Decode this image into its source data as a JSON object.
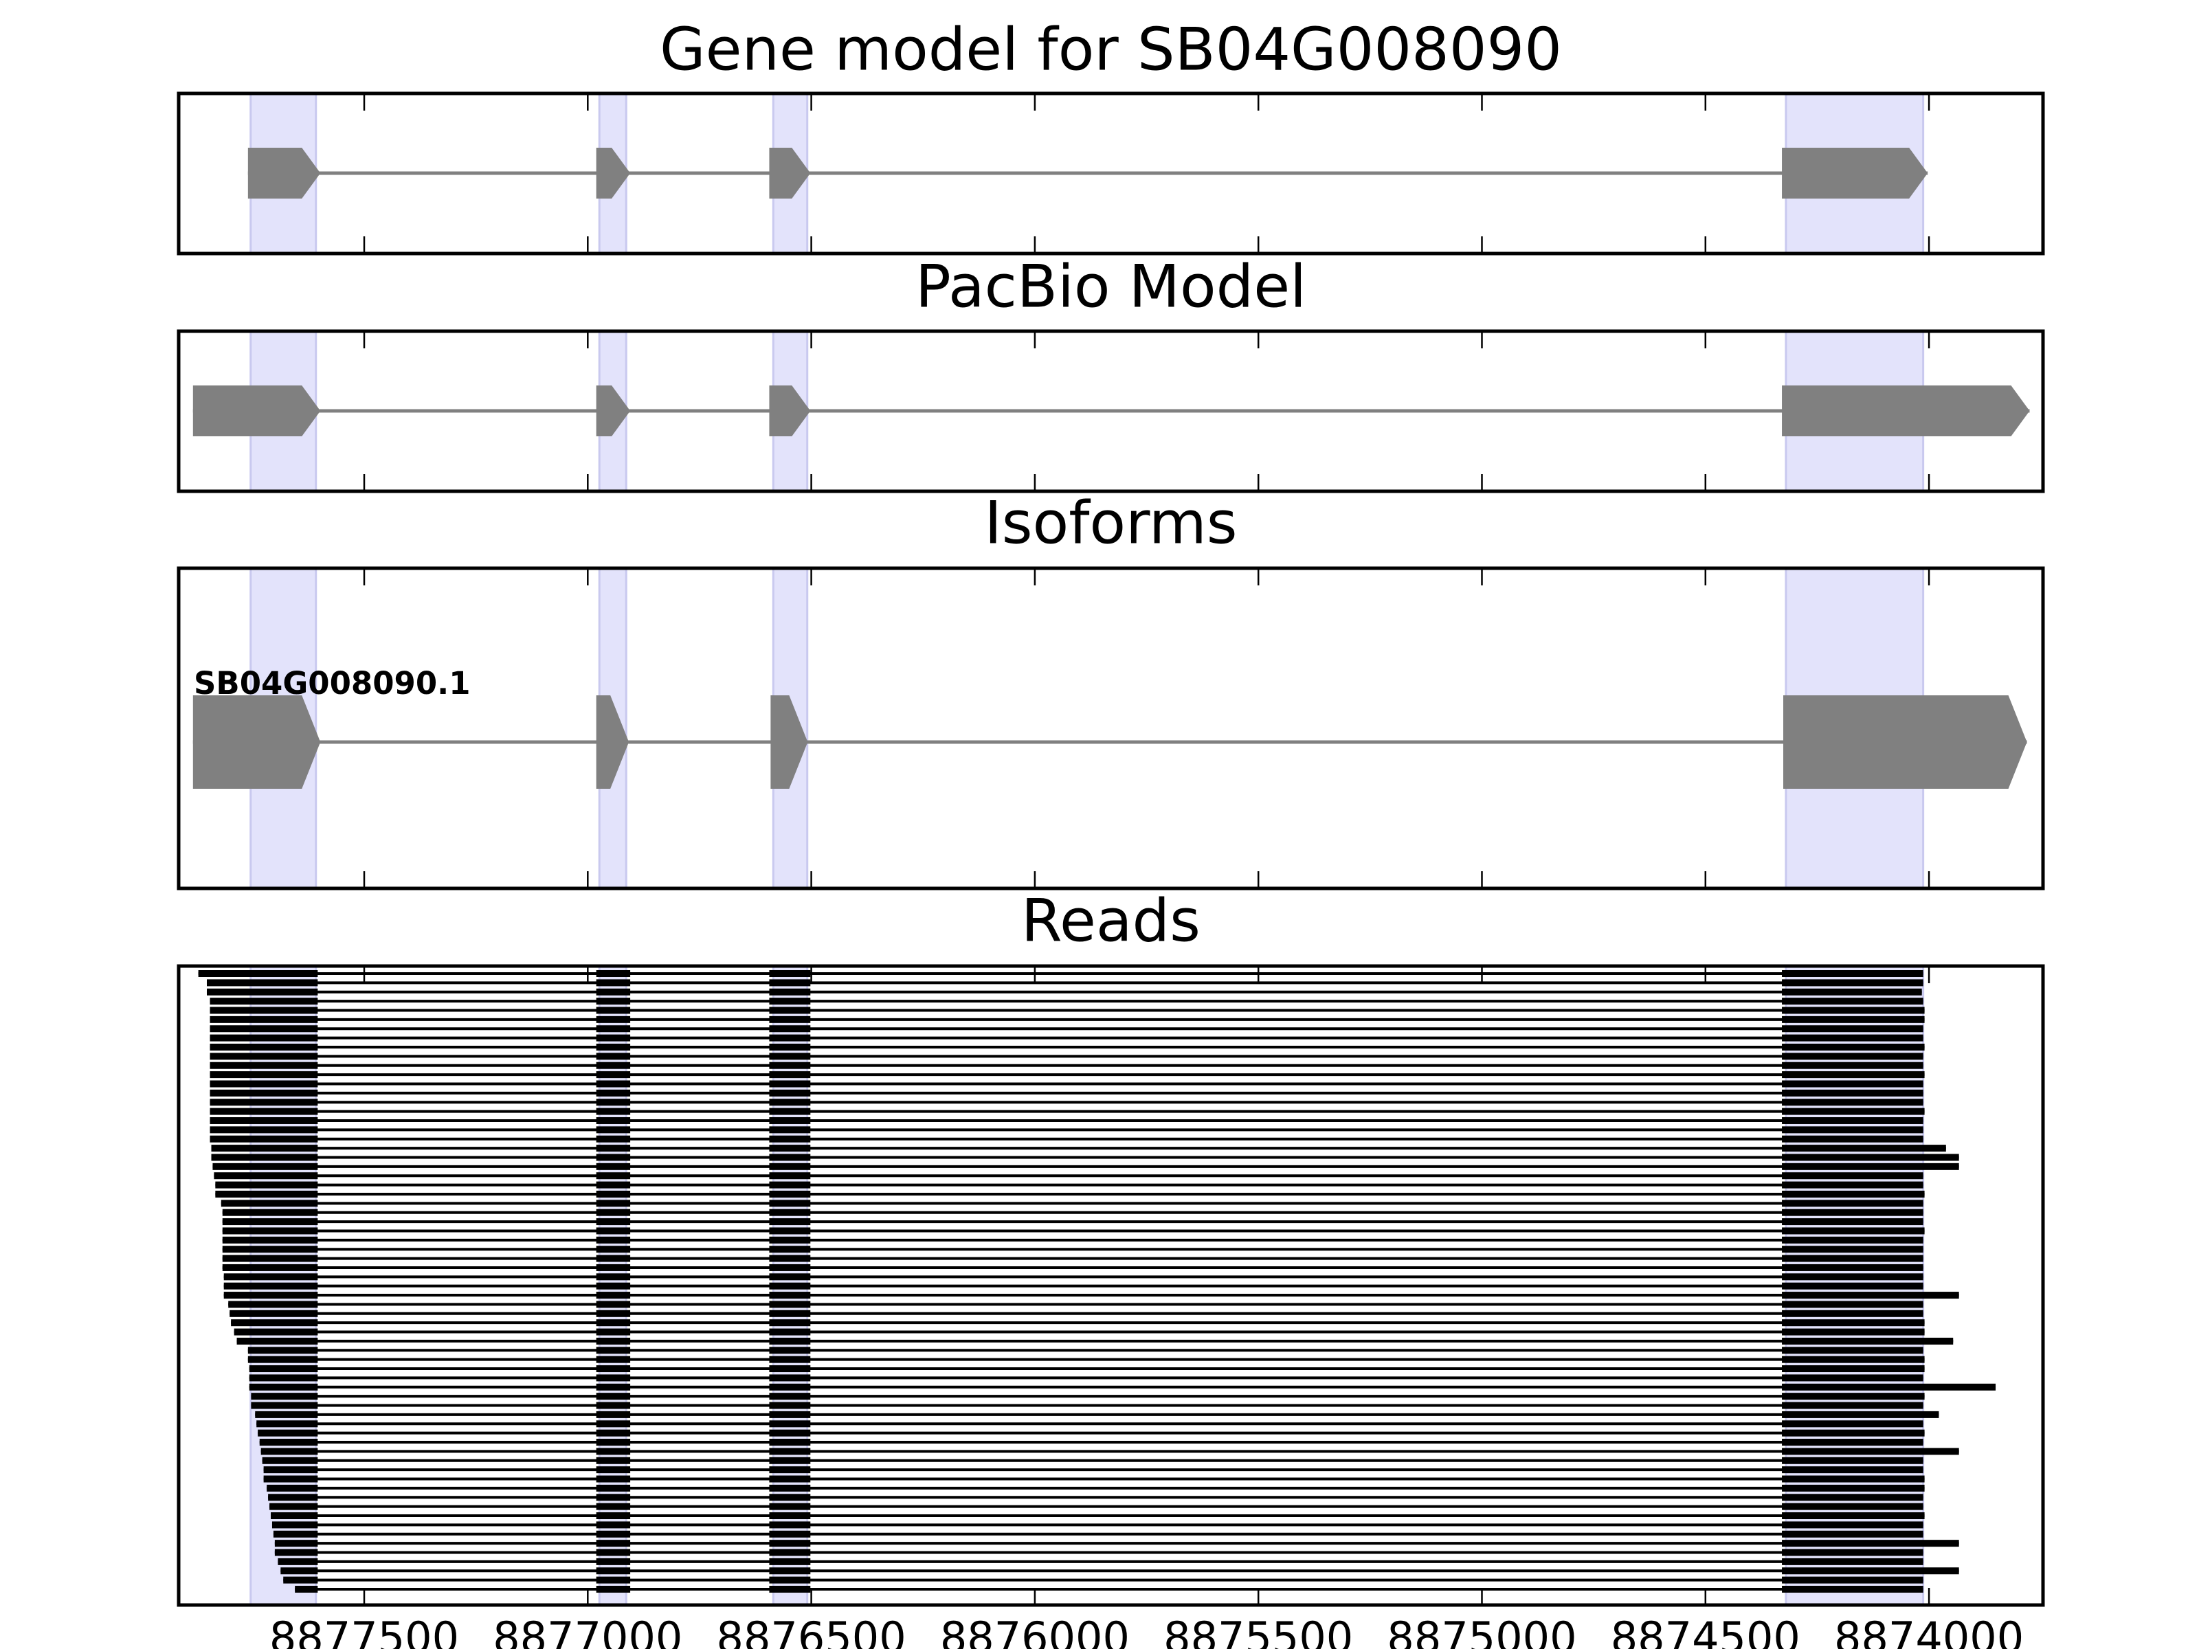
{
  "chart_data": [
    {
      "type": "gene",
      "title": "Gene model for SB04G008090",
      "xlim": [
        8877915,
        8873745
      ],
      "xticks": [
        8877500,
        8877000,
        8876500,
        8876000,
        8875500,
        8875000,
        8874500,
        8874000
      ],
      "highlights": [
        [
          8877754,
          8877608
        ],
        [
          8876974,
          8876914
        ],
        [
          8876585,
          8876509
        ],
        [
          8874320,
          8874013
        ]
      ],
      "exons": [
        [
          8877760,
          8877598
        ],
        [
          8876981,
          8876905
        ],
        [
          8876594,
          8876502
        ],
        [
          8874329,
          8874003
        ]
      ],
      "color": "#808080"
    },
    {
      "type": "gene",
      "title": "PacBio Model",
      "xlim": [
        8877915,
        8873745
      ],
      "xticks": [
        8877500,
        8877000,
        8876500,
        8876000,
        8875500,
        8875000,
        8874500,
        8874000
      ],
      "highlights": [
        [
          8877754,
          8877608
        ],
        [
          8876974,
          8876914
        ],
        [
          8876585,
          8876509
        ],
        [
          8874320,
          8874013
        ]
      ],
      "exons": [
        [
          8877883,
          8877598
        ],
        [
          8876981,
          8876905
        ],
        [
          8876594,
          8876502
        ],
        [
          8874329,
          8873775
        ]
      ],
      "color": "#808080"
    },
    {
      "type": "gene",
      "title": "Isoforms",
      "xlim": [
        8877915,
        8873745
      ],
      "xticks": [
        8877500,
        8877000,
        8876500,
        8876000,
        8875500,
        8875000,
        8874500,
        8874000
      ],
      "highlights": [
        [
          8877754,
          8877608
        ],
        [
          8876974,
          8876914
        ],
        [
          8876585,
          8876509
        ],
        [
          8874320,
          8874013
        ]
      ],
      "label": "SB04G008090.1",
      "exons": [
        [
          8877883,
          8877598
        ],
        [
          8876981,
          8876908
        ],
        [
          8876591,
          8876508
        ],
        [
          8874326,
          8873781
        ]
      ],
      "color": "#808080"
    },
    {
      "type": "reads",
      "title": "Reads",
      "xlim": [
        8877915,
        8873745
      ],
      "xticks": [
        8877500,
        8877000,
        8876500,
        8876000,
        8875500,
        8875000,
        8874500,
        8874000
      ],
      "highlights": [
        [
          8877754,
          8877608
        ],
        [
          8876974,
          8876914
        ],
        [
          8876585,
          8876509
        ],
        [
          8874320,
          8874013
        ]
      ],
      "inner_exons": [
        [
          8876981,
          8876905
        ],
        [
          8876594,
          8876502
        ]
      ],
      "exon1_end": 8877604,
      "exon4_start": 8874329,
      "color": "#000000",
      "read_starts": [
        8877871,
        8877852,
        8877852,
        8877845,
        8877845,
        8877845,
        8877845,
        8877845,
        8877845,
        8877845,
        8877845,
        8877845,
        8877845,
        8877845,
        8877845,
        8877845,
        8877845,
        8877845,
        8877845,
        8877842,
        8877842,
        8877839,
        8877836,
        8877833,
        8877833,
        8877820,
        8877817,
        8877817,
        8877817,
        8877817,
        8877817,
        8877817,
        8877817,
        8877814,
        8877814,
        8877814,
        8877804,
        8877801,
        8877798,
        8877791,
        8877785,
        8877760,
        8877760,
        8877757,
        8877757,
        8877757,
        8877753,
        8877753,
        8877744,
        8877741,
        8877738,
        8877734,
        8877731,
        8877728,
        8877725,
        8877725,
        8877718,
        8877715,
        8877712,
        8877709,
        8877706,
        8877703,
        8877700,
        8877700,
        8877693,
        8877687,
        8877681,
        8877655
      ],
      "read_ends": [
        8874013,
        8874013,
        8874016,
        8874013,
        8874010,
        8874010,
        8874013,
        8874013,
        8874010,
        8874013,
        8874013,
        8874010,
        8874013,
        8874013,
        8874013,
        8874010,
        8874013,
        8874013,
        8874013,
        8873962,
        8873933,
        8873933,
        8874013,
        8874013,
        8874010,
        8874013,
        8874013,
        8874013,
        8874010,
        8874013,
        8874013,
        8874013,
        8874013,
        8874013,
        8874013,
        8873933,
        8874013,
        8874013,
        8874010,
        8874010,
        8873946,
        8874013,
        8874010,
        8874010,
        8874013,
        8873851,
        8874010,
        8874013,
        8873978,
        8874013,
        8874010,
        8874013,
        8873933,
        8874013,
        8874013,
        8874010,
        8874010,
        8874013,
        8874013,
        8874010,
        8874013,
        8874013,
        8873933,
        8874013,
        8874013,
        8873933,
        8874013,
        8874013
      ]
    }
  ]
}
